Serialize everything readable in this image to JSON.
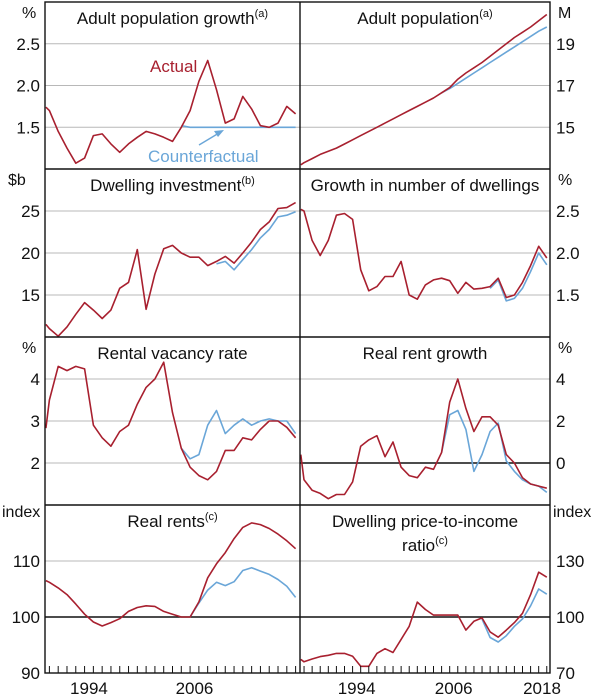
{
  "colors": {
    "actual": "#a8202f",
    "counterfactual": "#6aa6d8",
    "grid": "#b8b8b8",
    "axis": "#111111"
  },
  "annotations": {
    "actual_label": "Actual",
    "counterfactual_label": "Counterfactual"
  },
  "x_axis": {
    "left": {
      "xlim": [
        1989.5,
        2018.5
      ],
      "labels": [
        "1994",
        "2006"
      ]
    },
    "right": {
      "xlim": [
        1987.5,
        2018.4
      ],
      "labels": [
        "1994",
        "2006",
        "2018"
      ]
    }
  },
  "chart_data": [
    {
      "type": "line",
      "side": "left",
      "row": 0,
      "title": "Adult population growth",
      "note": "(a)",
      "unit": "%",
      "ylim": [
        1.0,
        3.0
      ],
      "yticks": [
        1.5,
        2.0,
        2.5
      ],
      "ytick_labels": [
        "1.5",
        "2.0",
        "2.5"
      ],
      "baseline": null,
      "x": [
        1989.6,
        1990,
        1991,
        1992,
        1993,
        1994,
        1995,
        1996,
        1997,
        1998,
        1999,
        2000,
        2001,
        2002,
        2003,
        2004,
        2005,
        2006,
        2007,
        2008,
        2009,
        2010,
        2011,
        2012,
        2013,
        2014,
        2015,
        2016,
        2017,
        2018
      ],
      "series": [
        {
          "name": "Actual",
          "values": [
            1.74,
            1.7,
            1.45,
            1.25,
            1.07,
            1.13,
            1.4,
            1.42,
            1.3,
            1.2,
            1.3,
            1.38,
            1.45,
            1.42,
            1.38,
            1.33,
            1.5,
            1.7,
            2.05,
            2.3,
            1.95,
            1.55,
            1.6,
            1.87,
            1.72,
            1.52,
            1.5,
            1.55,
            1.75,
            1.66
          ]
        },
        {
          "name": "Counterfactual",
          "values": [
            null,
            null,
            null,
            null,
            null,
            null,
            null,
            null,
            null,
            null,
            null,
            null,
            null,
            null,
            null,
            null,
            1.52,
            1.5,
            1.5,
            1.5,
            1.5,
            1.5,
            1.5,
            1.5,
            1.5,
            1.5,
            1.5,
            1.5,
            1.5,
            1.5
          ]
        }
      ]
    },
    {
      "type": "line",
      "side": "right",
      "row": 0,
      "title": "Adult population",
      "note": "(a)",
      "unit": "M",
      "ylim": [
        13,
        21
      ],
      "yticks": [
        15,
        17,
        19
      ],
      "ytick_labels": [
        "15",
        "17",
        "19"
      ],
      "baseline": null,
      "x": [
        1987.6,
        1988,
        1989,
        1990,
        1991,
        1992,
        1993,
        1994,
        1995,
        1996,
        1997,
        1998,
        1999,
        2000,
        2001,
        2002,
        2003,
        2004,
        2005,
        2006,
        2007,
        2008,
        2009,
        2010,
        2011,
        2012,
        2013,
        2014,
        2015,
        2016,
        2017,
        2018
      ],
      "series": [
        {
          "name": "Actual",
          "values": [
            13.2,
            13.3,
            13.5,
            13.7,
            13.85,
            14.0,
            14.2,
            14.4,
            14.6,
            14.8,
            15.0,
            15.2,
            15.4,
            15.6,
            15.8,
            16.0,
            16.2,
            16.4,
            16.65,
            16.9,
            17.3,
            17.6,
            17.85,
            18.1,
            18.4,
            18.7,
            19.0,
            19.3,
            19.55,
            19.8,
            20.1,
            20.4
          ]
        },
        {
          "name": "Counterfactual",
          "values": [
            null,
            null,
            null,
            null,
            null,
            null,
            null,
            null,
            null,
            null,
            null,
            null,
            null,
            null,
            null,
            null,
            null,
            null,
            16.65,
            16.85,
            17.1,
            17.35,
            17.6,
            17.85,
            18.1,
            18.35,
            18.6,
            18.85,
            19.1,
            19.35,
            19.6,
            19.8
          ]
        }
      ]
    },
    {
      "type": "line",
      "side": "left",
      "row": 1,
      "title": "Dwelling investment",
      "note": "(b)",
      "unit": "$b",
      "ylim": [
        10,
        30
      ],
      "yticks": [
        15,
        20,
        25
      ],
      "ytick_labels": [
        "15",
        "20",
        "25"
      ],
      "baseline": null,
      "x": [
        1989.6,
        1990,
        1991,
        1992,
        1993,
        1994,
        1995,
        1996,
        1997,
        1998,
        1999,
        2000,
        2001,
        2002,
        2003,
        2004,
        2005,
        2006,
        2007,
        2008,
        2009,
        2010,
        2011,
        2012,
        2013,
        2014,
        2015,
        2016,
        2017,
        2018
      ],
      "series": [
        {
          "name": "Actual",
          "values": [
            11.5,
            11.0,
            10.1,
            11.2,
            12.7,
            14.1,
            13.2,
            12.2,
            13.2,
            15.8,
            16.5,
            20.4,
            13.3,
            17.5,
            20.5,
            20.9,
            20.0,
            19.5,
            19.5,
            18.5,
            19.0,
            19.6,
            18.8,
            20.0,
            21.3,
            22.8,
            23.7,
            25.3,
            25.4,
            26.0
          ]
        },
        {
          "name": "Counterfactual",
          "values": [
            null,
            null,
            null,
            null,
            null,
            null,
            null,
            null,
            null,
            null,
            null,
            null,
            null,
            null,
            null,
            null,
            null,
            null,
            null,
            null,
            18.7,
            19.0,
            18.0,
            19.2,
            20.4,
            21.8,
            22.8,
            24.3,
            24.5,
            24.9
          ]
        }
      ]
    },
    {
      "type": "line",
      "side": "right",
      "row": 1,
      "title": "Growth in number of dwellings",
      "note": "",
      "unit": "%",
      "ylim": [
        1.0,
        3.0
      ],
      "yticks": [
        1.5,
        2.0,
        2.5
      ],
      "ytick_labels": [
        "1.5",
        "2.0",
        "2.5"
      ],
      "baseline": null,
      "x": [
        1987.6,
        1988,
        1989,
        1990,
        1991,
        1992,
        1993,
        1994,
        1995,
        1996,
        1997,
        1998,
        1999,
        2000,
        2001,
        2002,
        2003,
        2004,
        2005,
        2006,
        2007,
        2008,
        2009,
        2010,
        2011,
        2012,
        2013,
        2014,
        2015,
        2016,
        2017,
        2018
      ],
      "series": [
        {
          "name": "Actual",
          "values": [
            2.52,
            2.5,
            2.15,
            1.97,
            2.15,
            2.45,
            2.47,
            2.4,
            1.8,
            1.55,
            1.6,
            1.72,
            1.72,
            1.9,
            1.5,
            1.45,
            1.62,
            1.68,
            1.7,
            1.67,
            1.52,
            1.65,
            1.57,
            1.58,
            1.6,
            1.7,
            1.47,
            1.5,
            1.65,
            1.85,
            2.08,
            1.94
          ]
        },
        {
          "name": "Counterfactual",
          "values": [
            null,
            null,
            null,
            null,
            null,
            null,
            null,
            null,
            null,
            null,
            null,
            null,
            null,
            null,
            null,
            null,
            null,
            null,
            null,
            null,
            null,
            null,
            null,
            null,
            1.58,
            1.68,
            1.43,
            1.46,
            1.58,
            1.78,
            2.0,
            1.86
          ]
        }
      ]
    },
    {
      "type": "line",
      "side": "left",
      "row": 2,
      "title": "Rental vacancy rate",
      "note": "",
      "unit": "%",
      "ylim": [
        1,
        5
      ],
      "yticks": [
        2,
        3,
        4
      ],
      "ytick_labels": [
        "2",
        "3",
        "4"
      ],
      "baseline": null,
      "x": [
        1989.6,
        1990,
        1991,
        1992,
        1993,
        1994,
        1995,
        1996,
        1997,
        1998,
        1999,
        2000,
        2001,
        2002,
        2003,
        2004,
        2005,
        2006,
        2007,
        2008,
        2009,
        2010,
        2011,
        2012,
        2013,
        2014,
        2015,
        2016,
        2017,
        2018
      ],
      "series": [
        {
          "name": "Actual",
          "values": [
            2.83,
            3.5,
            4.3,
            4.2,
            4.3,
            4.24,
            2.9,
            2.6,
            2.4,
            2.75,
            2.9,
            3.4,
            3.8,
            4.0,
            4.4,
            3.2,
            2.35,
            1.9,
            1.7,
            1.6,
            1.8,
            2.3,
            2.3,
            2.6,
            2.55,
            2.8,
            3.0,
            3.0,
            2.85,
            2.6
          ]
        },
        {
          "name": "Counterfactual",
          "values": [
            null,
            null,
            null,
            null,
            null,
            null,
            null,
            null,
            null,
            null,
            null,
            null,
            null,
            null,
            null,
            null,
            2.35,
            2.1,
            2.2,
            2.9,
            3.25,
            2.7,
            2.9,
            3.05,
            2.9,
            3.0,
            3.05,
            3.0,
            3.0,
            2.7
          ]
        }
      ]
    },
    {
      "type": "line",
      "side": "right",
      "row": 2,
      "title": "Real rent growth",
      "note": "",
      "unit": "%",
      "ylim": [
        -2,
        6
      ],
      "yticks": [
        0,
        2,
        4
      ],
      "ytick_labels": [
        "0",
        "2",
        "4"
      ],
      "baseline": 0,
      "x": [
        1987.6,
        1988,
        1989,
        1990,
        1991,
        1992,
        1993,
        1994,
        1995,
        1996,
        1997,
        1998,
        1999,
        2000,
        2001,
        2002,
        2003,
        2004,
        2005,
        2006,
        2007,
        2008,
        2009,
        2010,
        2011,
        2012,
        2013,
        2014,
        2015,
        2016,
        2017,
        2018
      ],
      "series": [
        {
          "name": "Actual",
          "values": [
            0.4,
            -0.8,
            -1.3,
            -1.45,
            -1.7,
            -1.5,
            -1.5,
            -0.9,
            0.8,
            1.1,
            1.3,
            0.3,
            1.0,
            -0.2,
            -0.6,
            -0.7,
            -0.2,
            -0.3,
            0.5,
            2.9,
            4.0,
            2.6,
            1.5,
            2.2,
            2.2,
            1.8,
            0.4,
            0.0,
            -0.7,
            -1.0,
            -1.1,
            -1.2
          ]
        },
        {
          "name": "Counterfactual",
          "values": [
            null,
            null,
            null,
            null,
            null,
            null,
            null,
            null,
            null,
            null,
            null,
            null,
            null,
            null,
            null,
            null,
            null,
            null,
            0.5,
            2.3,
            2.5,
            1.6,
            -0.4,
            0.4,
            1.5,
            1.9,
            0.1,
            -0.4,
            -0.8,
            -1.0,
            -1.1,
            -1.4
          ]
        }
      ]
    },
    {
      "type": "line",
      "side": "left",
      "row": 3,
      "title": "Real rents",
      "note": "(c)",
      "unit": "index",
      "ylim": [
        90,
        120
      ],
      "yticks": [
        90,
        100,
        110
      ],
      "ytick_labels": [
        "90",
        "100",
        "110"
      ],
      "baseline": 100,
      "x": [
        1989.6,
        1990,
        1991,
        1992,
        1993,
        1994,
        1995,
        1996,
        1997,
        1998,
        1999,
        2000,
        2001,
        2002,
        2003,
        2004,
        2005,
        2006,
        2007,
        2008,
        2009,
        2010,
        2011,
        2012,
        2013,
        2014,
        2015,
        2016,
        2017,
        2018
      ],
      "series": [
        {
          "name": "Actual",
          "values": [
            106.5,
            106.2,
            105.2,
            104,
            102.3,
            100.5,
            99.1,
            98.4,
            99,
            99.7,
            101,
            101.7,
            102,
            101.9,
            101,
            100.5,
            100,
            100,
            102.7,
            107,
            109.5,
            111.5,
            114,
            116,
            116.8,
            116.5,
            115.8,
            114.8,
            113.6,
            112.2
          ]
        },
        {
          "name": "Counterfactual",
          "values": [
            null,
            null,
            null,
            null,
            null,
            null,
            null,
            null,
            null,
            null,
            null,
            null,
            null,
            null,
            null,
            null,
            null,
            100,
            102.5,
            104.8,
            106.2,
            105.6,
            106.3,
            108.3,
            108.8,
            108.2,
            107.6,
            106.7,
            105.5,
            103.5
          ]
        }
      ]
    },
    {
      "type": "line",
      "side": "right",
      "row": 3,
      "title": "Dwelling price-to-income",
      "title2": "ratio",
      "note": "(c)",
      "unit": "index",
      "ylim": [
        70,
        160
      ],
      "yticks": [
        70,
        100,
        130
      ],
      "ytick_labels": [
        "70",
        "100",
        "130"
      ],
      "baseline": 100,
      "x": [
        1987.6,
        1988,
        1989,
        1990,
        1991,
        1992,
        1993,
        1994,
        1995,
        1996,
        1997,
        1998,
        1999,
        2000,
        2001,
        2002,
        2003,
        2004,
        2005,
        2006,
        2007,
        2008,
        2009,
        2010,
        2011,
        2012,
        2013,
        2014,
        2015,
        2016,
        2017,
        2018
      ],
      "series": [
        {
          "name": "Actual",
          "values": [
            77.3,
            76,
            77.5,
            78.8,
            79.5,
            80.5,
            80.5,
            79,
            73.6,
            73.6,
            80.5,
            83,
            81,
            88,
            95,
            108,
            104,
            101,
            101,
            101,
            101,
            93,
            97.7,
            99.5,
            92,
            89.2,
            93,
            97,
            102,
            112,
            124,
            121.3
          ]
        },
        {
          "name": "Counterfactual",
          "values": [
            null,
            null,
            null,
            null,
            null,
            null,
            null,
            null,
            null,
            null,
            null,
            null,
            null,
            null,
            null,
            null,
            null,
            null,
            null,
            null,
            null,
            null,
            null,
            99,
            89,
            86.6,
            90,
            95,
            99,
            106,
            115,
            112.2
          ]
        }
      ]
    }
  ]
}
